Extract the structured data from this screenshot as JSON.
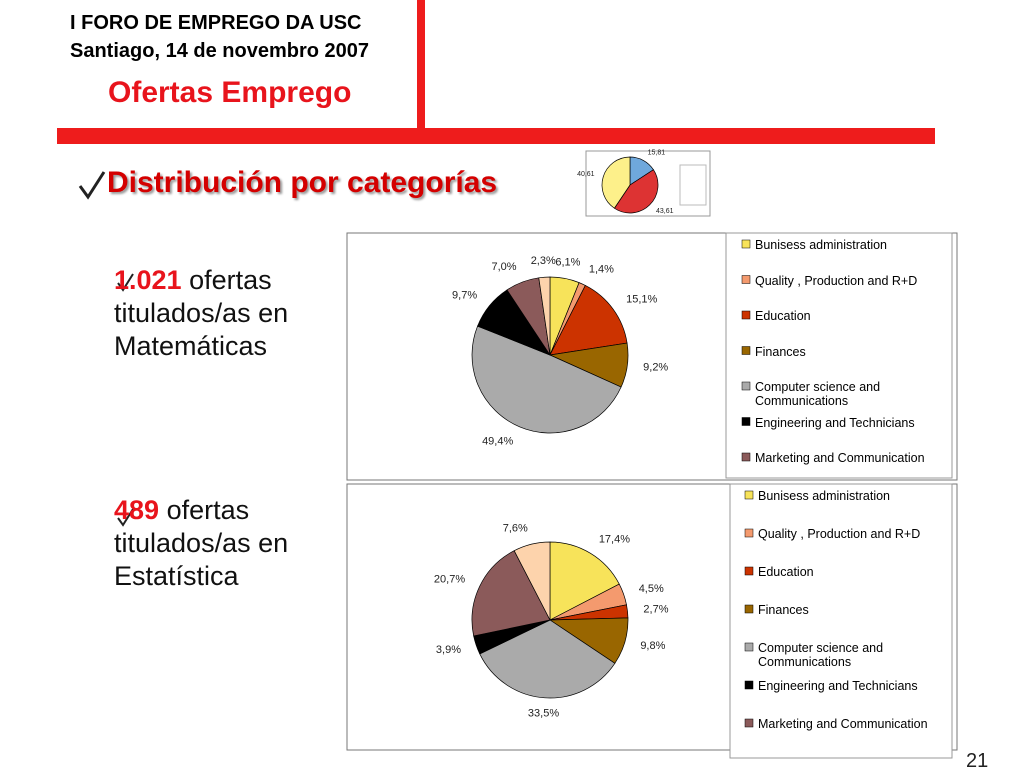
{
  "header": {
    "line1": "I FORO DE EMPREGO DA USC",
    "line2": "Santiago, 14 de novembro 2007",
    "title": "Ofertas Emprego"
  },
  "section_title": "Distribución por categorías",
  "bullets": [
    {
      "number": "1.021",
      "text": "ofertas titulados/as en Matemáticas"
    },
    {
      "number": "489",
      "text": "ofertas titulados/as en Estatística"
    }
  ],
  "page_number": "21",
  "chart_data": [
    {
      "type": "pie",
      "values": [
        15.81,
        43.61,
        40.61
      ],
      "value_labels": [
        "15,81",
        "43,61",
        "40,61"
      ],
      "colors": [
        "#6fa8dc",
        "#dd3333",
        "#fdf08a"
      ]
    },
    {
      "type": "pie",
      "categories": [
        "Bunisess administration",
        "Quality , Production and R+D",
        "Education",
        "Finances",
        "Computer science and Communications",
        "Engineering and Technicians",
        "Marketing and Communication",
        null
      ],
      "values": [
        6.1,
        1.4,
        15.1,
        9.2,
        49.4,
        9.7,
        7.0,
        2.3
      ],
      "value_labels": [
        "6,1%",
        "1,4%",
        "15,1%",
        "9,2%",
        "49,4%",
        "9,7%",
        "7,0%",
        "2,3%"
      ],
      "colors": [
        "#f7e35a",
        "#f49a6e",
        "#cc3300",
        "#996600",
        "#aaaaaa",
        "#000000",
        "#8b5a5a",
        "#fdd3ac"
      ],
      "legend": "right"
    },
    {
      "type": "pie",
      "categories": [
        "Bunisess administration",
        "Quality , Production and R+D",
        "Education",
        "Finances",
        "Computer science and Communications",
        "Engineering and Technicians",
        "Marketing and Communication",
        null
      ],
      "values": [
        17.4,
        4.5,
        2.7,
        9.8,
        33.5,
        3.9,
        20.7,
        7.6
      ],
      "value_labels": [
        "17,4%",
        "4,5%",
        "2,7%",
        "9,8%",
        "33,5%",
        "3,9%",
        "20,7%",
        "7,6%"
      ],
      "colors": [
        "#f7e35a",
        "#f49a6e",
        "#cc3300",
        "#996600",
        "#aaaaaa",
        "#000000",
        "#8b5a5a",
        "#fdd3ac"
      ],
      "legend": "right"
    }
  ]
}
